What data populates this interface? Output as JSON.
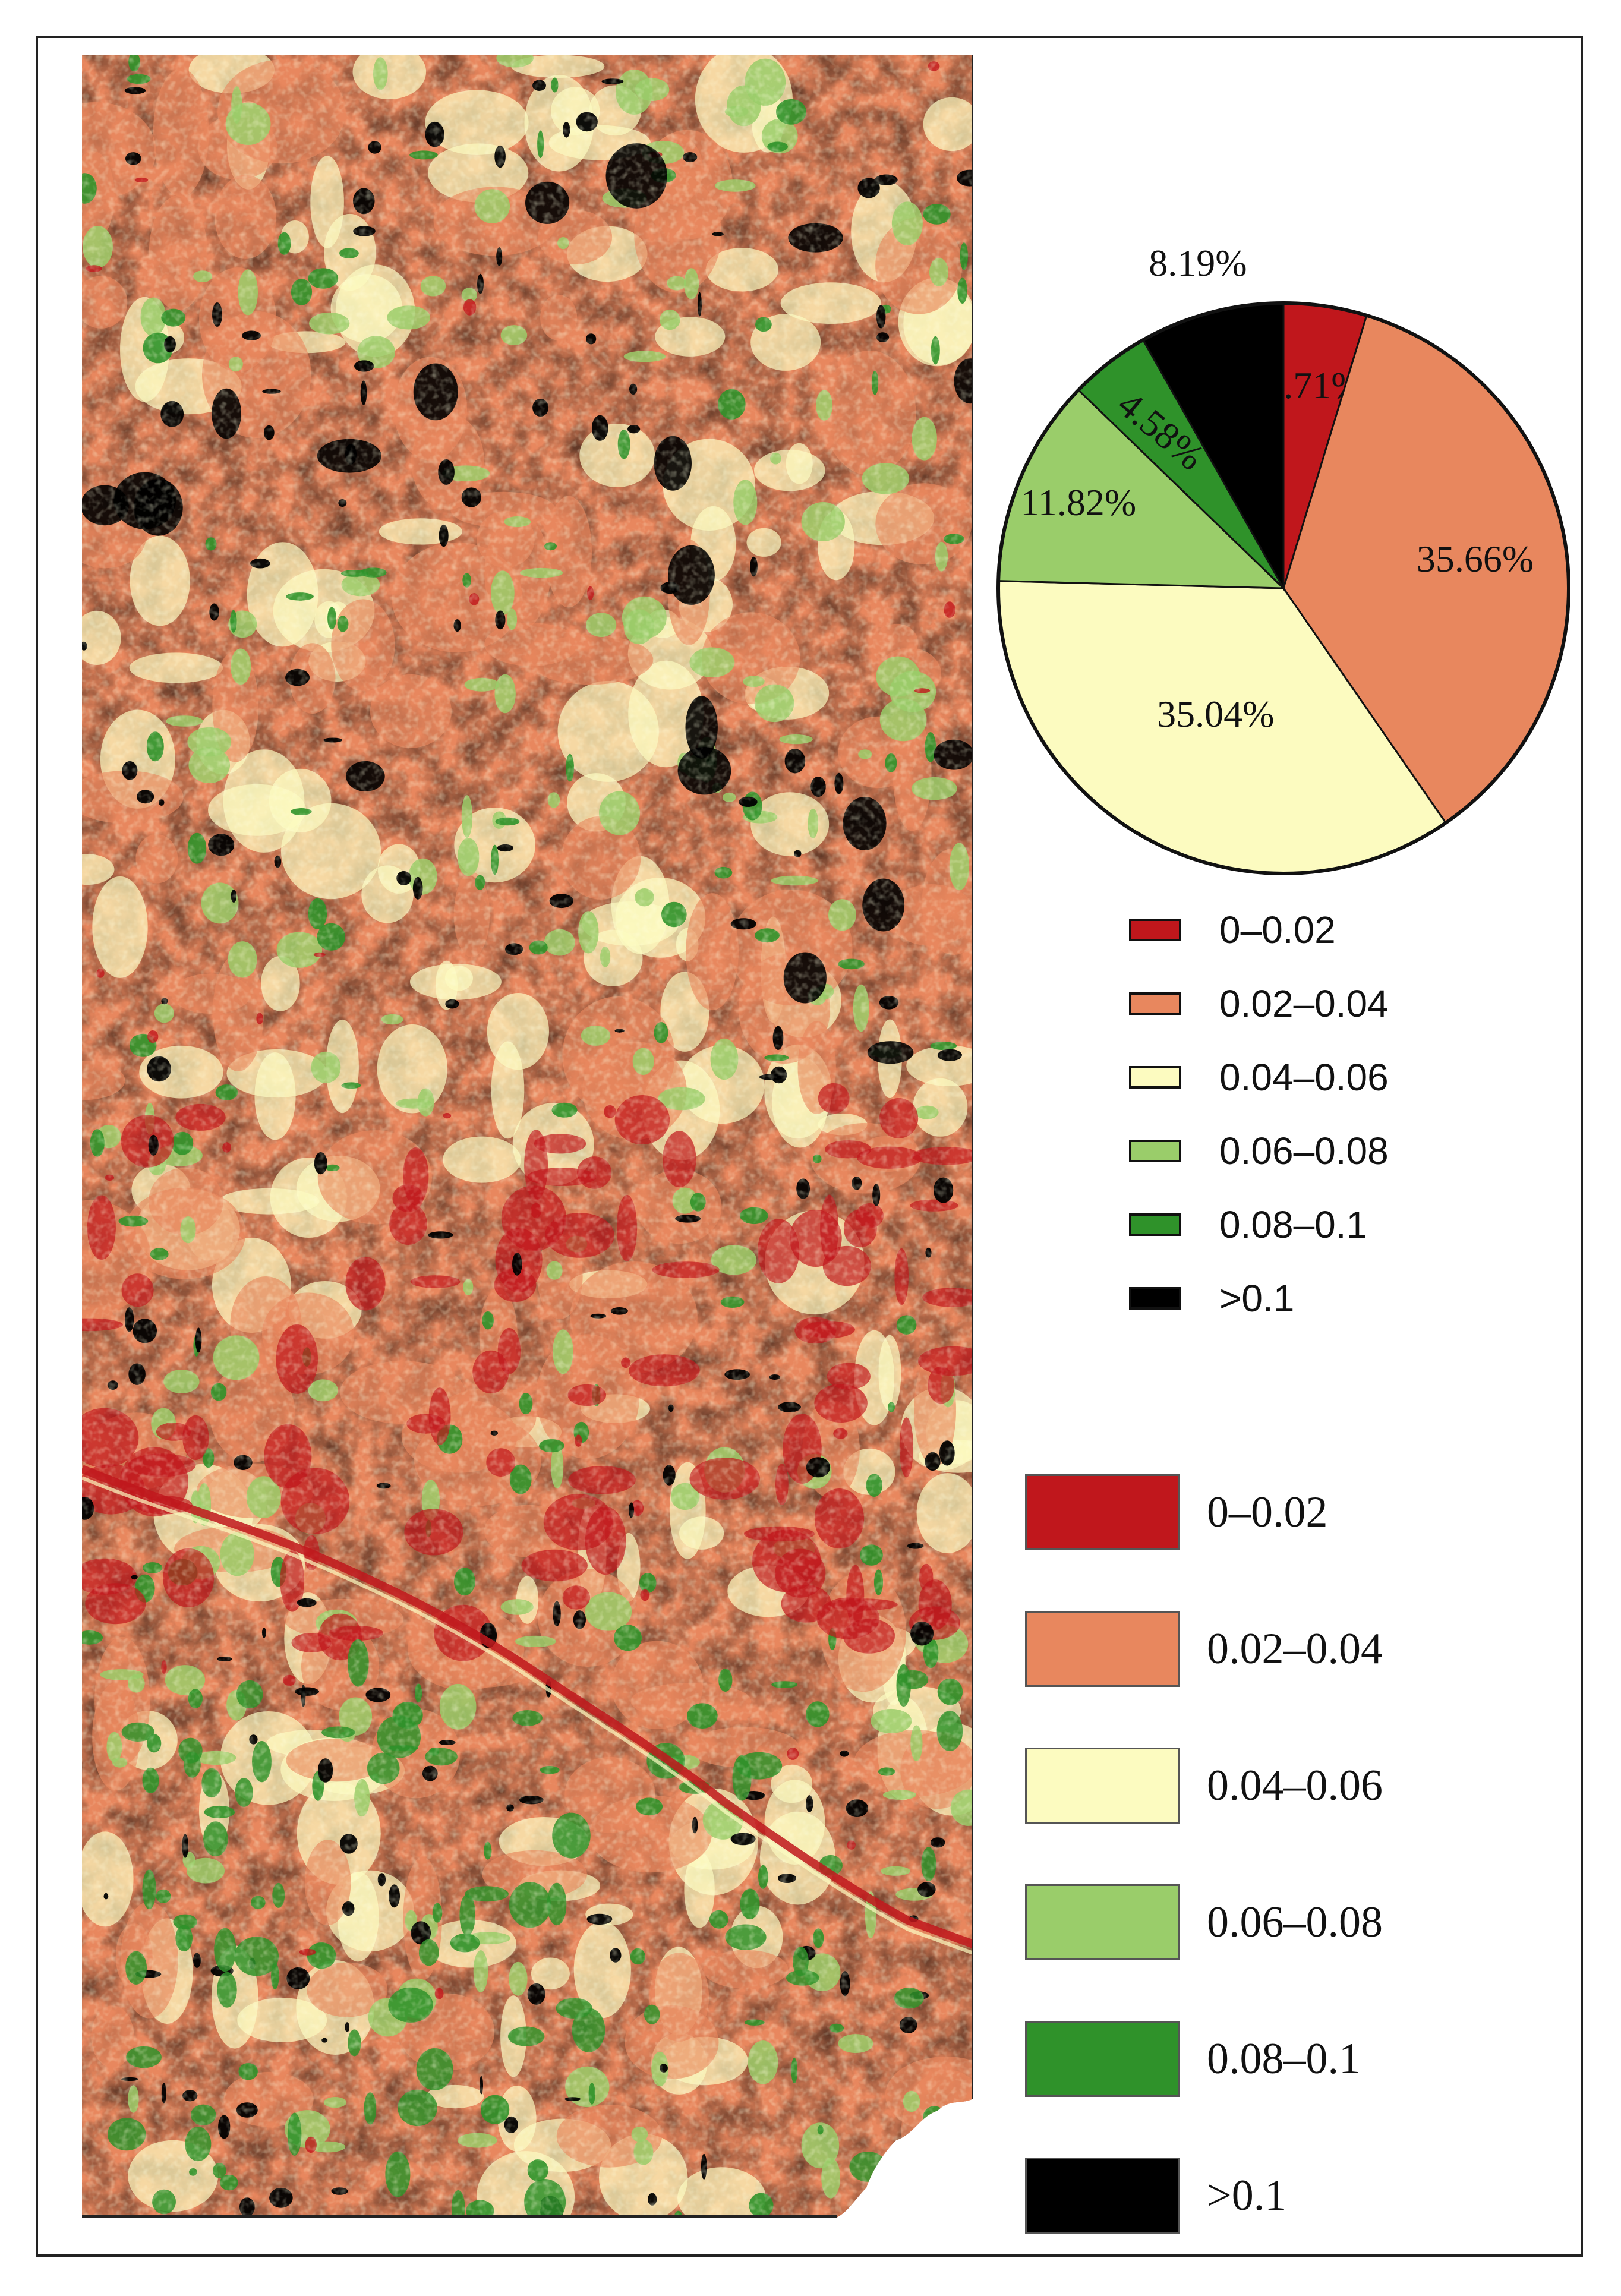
{
  "chart_data": {
    "type": "pie",
    "categories": [
      "0–0.02",
      "0.02–0.04",
      "0.04–0.06",
      "0.06–0.08",
      "0.08–0.1",
      ">0.1"
    ],
    "values": [
      4.71,
      35.66,
      35.04,
      11.82,
      4.58,
      8.19
    ],
    "value_labels": [
      "4.71%",
      "35.66%",
      "35.04%",
      "11.82%",
      "4.58%",
      "8.19%"
    ],
    "colors": [
      "#c0171c",
      "#e8875e",
      "#fcfbc0",
      "#9acd6a",
      "#2f922a",
      "#000000"
    ],
    "start": "12 o'clock, clockwise"
  },
  "map": {
    "type": "classified raster",
    "dominant_classes": [
      "0.02–0.04",
      "0.04–0.06"
    ],
    "features": [
      "river channel running diagonally in lower half",
      "irregular missing corner at bottom right"
    ]
  },
  "legend_small": {
    "items": [
      {
        "label": "0–0.02",
        "color": "#c0171c"
      },
      {
        "label": "0.02–0.04",
        "color": "#e8875e"
      },
      {
        "label": "0.04–0.06",
        "color": "#fcfbc0"
      },
      {
        "label": "0.06–0.08",
        "color": "#9acd6a"
      },
      {
        "label": "0.08–0.1",
        "color": "#2f922a"
      },
      {
        "label": ">0.1",
        "color": "#000000"
      }
    ]
  },
  "legend_large": {
    "items": [
      {
        "label": "0–0.02",
        "color": "#c0171c"
      },
      {
        "label": "0.02–0.04",
        "color": "#e8875e"
      },
      {
        "label": "0.04–0.06",
        "color": "#fcfbc0"
      },
      {
        "label": "0.06–0.08",
        "color": "#9acd6a"
      },
      {
        "label": "0.08–0.1",
        "color": "#2f922a"
      },
      {
        "label": ">0.1",
        "color": "#000000"
      }
    ]
  }
}
